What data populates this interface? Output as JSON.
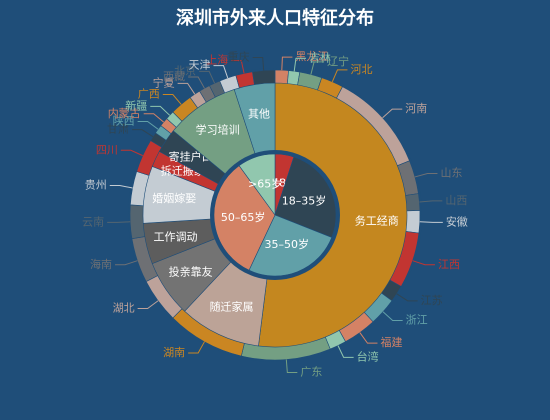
{
  "title": "深圳市外来人口特征分布",
  "chart_data": [
    {
      "type": "pie",
      "role": "age",
      "categories": [
        "<18岁",
        "18–35岁",
        "35–50岁",
        "50–65岁",
        ">65岁"
      ],
      "values": [
        5,
        26,
        26,
        33,
        10
      ],
      "colors": [
        "#c23531",
        "#2f4554",
        "#61a0a8",
        "#d48265",
        "#91c7ae"
      ]
    },
    {
      "type": "pie",
      "role": "reason",
      "categories": [
        "务工经商",
        "随迁家属",
        "投亲靠友",
        "工作调动",
        "婚姻嫁娶",
        "拆迁搬家",
        "寄挂户口",
        "学习培训",
        "其他"
      ],
      "values": [
        52,
        10,
        7,
        5,
        7,
        2,
        3,
        9,
        5
      ],
      "colors": [
        "#c4871f",
        "#bca397",
        "#737373",
        "#5d5d5d",
        "#c4ccd3",
        "#c23531",
        "#2f4554",
        "#749f83",
        "#61a0a8"
      ]
    },
    {
      "type": "pie",
      "role": "province",
      "categories": [
        "黑龙江",
        "吉林",
        "辽宁",
        "河北",
        "河南",
        "山东",
        "山西",
        "安徽",
        "江西",
        "江苏",
        "浙江",
        "福建",
        "台湾",
        "广东",
        "湖南",
        "湖北",
        "海南",
        "云南",
        "贵州",
        "四川",
        "甘肃",
        "陕西",
        "内蒙古",
        "新疆",
        "广西",
        "宁夏",
        "西藏",
        "北京",
        "天津",
        "上海",
        "重庆"
      ],
      "values": [
        1.2,
        1.0,
        2.0,
        2.0,
        9.0,
        3.0,
        1.5,
        2.0,
        5.0,
        1.5,
        2.5,
        3.0,
        1.5,
        8.0,
        7.0,
        4.0,
        4.0,
        3.0,
        3.0,
        3.0,
        0.8,
        0.8,
        0.8,
        0.8,
        2.0,
        1.0,
        1.0,
        1.0,
        1.5,
        1.5,
        2.0
      ],
      "colors": [
        "#d48265",
        "#91c7ae",
        "#749f83",
        "#ca8622",
        "#bda29a",
        "#6e7074",
        "#546570",
        "#c4ccd3",
        "#c23531",
        "#2f4554",
        "#61a0a8",
        "#d48265",
        "#91c7ae",
        "#749f83",
        "#ca8622",
        "#bda29a",
        "#6e7074",
        "#546570",
        "#c4ccd3",
        "#c23531",
        "#2f4554",
        "#61a0a8",
        "#d48265",
        "#91c7ae",
        "#ca8622",
        "#bda29a",
        "#6e7074",
        "#546570",
        "#c4ccd3",
        "#c23531",
        "#2f4554"
      ]
    }
  ]
}
